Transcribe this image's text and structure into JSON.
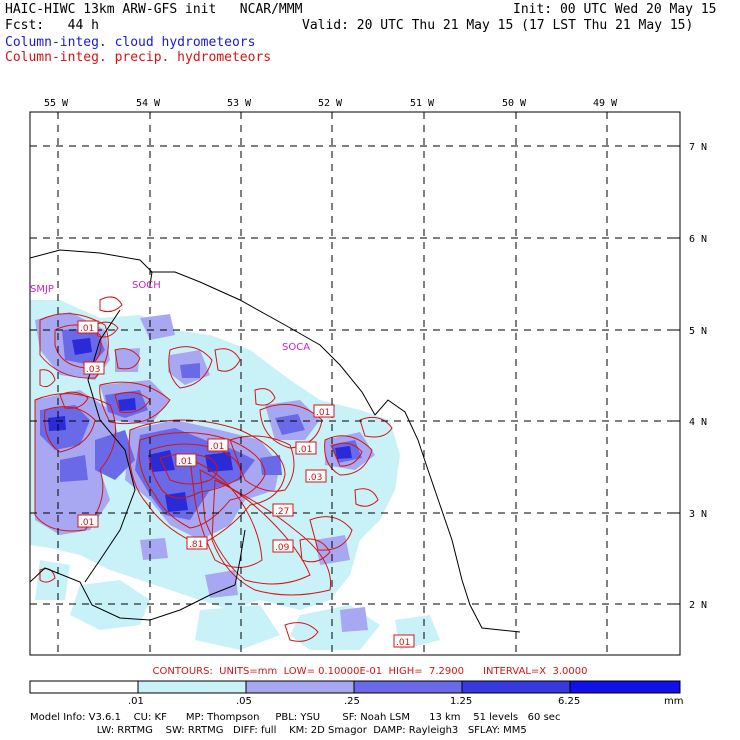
{
  "header": {
    "title_line": "HAIC-HIWC 13km ARW-GFS init   NCAR/MMM",
    "fcst_line": "Fcst:   44 h",
    "init_line": "Init: 00 UTC Wed 20 May 15",
    "valid_line": "Valid: 20 UTC Thu 21 May 15 (17 LST Thu 21 May 15)",
    "field_cloud": "Column-integ. cloud hydrometeors",
    "field_precip": "Column-integ. precip. hydrometeors"
  },
  "map": {
    "lon_labels": [
      "55 W",
      "54 W",
      "53 W",
      "52 W",
      "51 W",
      "50 W",
      "49 W"
    ],
    "lat_labels": [
      "7 N",
      "6 N",
      "5 N",
      "4 N",
      "3 N",
      "2 N"
    ],
    "stations": [
      "SMJP",
      "SOCH",
      "SOCA"
    ],
    "contour_labels": [
      ".01",
      ".03",
      ".01",
      ".01",
      ".01",
      ".01",
      ".03",
      ".01",
      ".27",
      ".81",
      ".09",
      ".01"
    ],
    "colors": {
      "fill_1": "#c8f2f8",
      "fill_2": "#a8a8f2",
      "fill_3": "#6a6ae8",
      "fill_4": "#2a2ad8",
      "contour": "#d41414",
      "coast": "#000000",
      "station": "#cc22cc"
    }
  },
  "contours_line": "CONTOURS:  UNITS=mm  LOW= 0.10000E-01  HIGH=  7.2900      INTERVAL=X  3.0000",
  "colorbar": {
    "ticks": [
      ".01",
      ".05",
      ".25",
      "1.25",
      "6.25"
    ],
    "unit": "mm",
    "colors": [
      "#ffffff",
      "#c8f2f8",
      "#a8a8f2",
      "#6a6ae8",
      "#3838e0",
      "#1010e8"
    ]
  },
  "model_info": {
    "line1": "Model Info: V3.6.1    CU: KF      MP: Thompson     PBL: YSU       SF: Noah LSM      13 km    51 levels   60 sec",
    "line2": "                     LW: RRTMG    SW: RRTMG   DIFF: full    KM: 2D Smagor  DAMP: Rayleigh3   SFLAY: MM5"
  }
}
